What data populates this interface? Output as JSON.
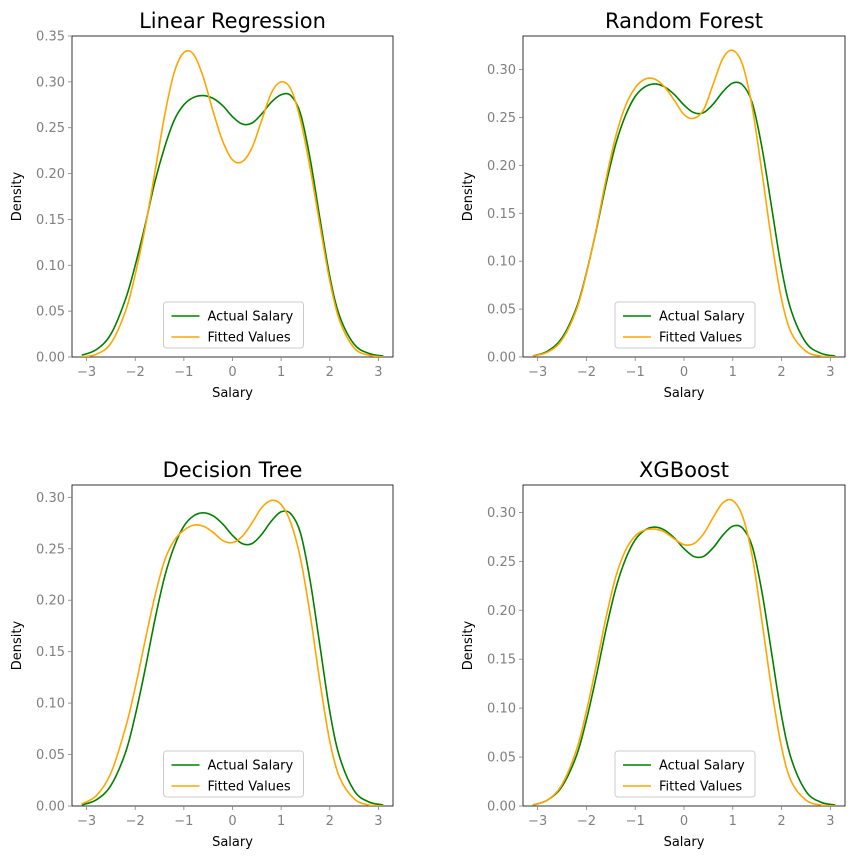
{
  "colors": {
    "actual": "#008000",
    "fitted": "#FFA500",
    "tick": "#808080"
  },
  "chart_data": [
    {
      "type": "line",
      "title": "Linear Regression",
      "xlabel": "Salary",
      "ylabel": "Density",
      "xlim": [
        -3.3,
        3.3
      ],
      "ylim": [
        0,
        0.35
      ],
      "xticks": [
        -3,
        -2,
        -1,
        0,
        1,
        2,
        3
      ],
      "yticks": [
        0.0,
        0.05,
        0.1,
        0.15,
        0.2,
        0.25,
        0.3,
        0.35
      ],
      "legend": "lower-center",
      "series": [
        {
          "name": "Actual Salary",
          "x": [
            -3.1,
            -2.8,
            -2.5,
            -2.2,
            -2.0,
            -1.8,
            -1.6,
            -1.4,
            -1.2,
            -1.0,
            -0.8,
            -0.6,
            -0.4,
            -0.2,
            0.0,
            0.2,
            0.4,
            0.6,
            0.8,
            1.0,
            1.2,
            1.4,
            1.6,
            1.8,
            2.0,
            2.2,
            2.5,
            2.8,
            3.1
          ],
          "y": [
            0.002,
            0.008,
            0.025,
            0.063,
            0.1,
            0.143,
            0.19,
            0.228,
            0.258,
            0.275,
            0.283,
            0.285,
            0.282,
            0.274,
            0.262,
            0.254,
            0.255,
            0.265,
            0.278,
            0.286,
            0.285,
            0.265,
            0.215,
            0.15,
            0.088,
            0.045,
            0.014,
            0.004,
            0.001
          ]
        },
        {
          "name": "Fitted Values",
          "x": [
            -3.1,
            -2.8,
            -2.5,
            -2.2,
            -2.0,
            -1.8,
            -1.6,
            -1.4,
            -1.2,
            -1.0,
            -0.8,
            -0.6,
            -0.4,
            -0.2,
            0.0,
            0.2,
            0.4,
            0.6,
            0.8,
            1.0,
            1.2,
            1.4,
            1.6,
            1.8,
            2.0,
            2.2,
            2.5,
            2.8,
            3.1
          ],
          "y": [
            0.0,
            0.003,
            0.015,
            0.05,
            0.09,
            0.14,
            0.2,
            0.262,
            0.31,
            0.332,
            0.33,
            0.305,
            0.268,
            0.235,
            0.215,
            0.213,
            0.228,
            0.258,
            0.288,
            0.3,
            0.292,
            0.258,
            0.205,
            0.143,
            0.083,
            0.04,
            0.01,
            0.002,
            0.0
          ]
        }
      ]
    },
    {
      "type": "line",
      "title": "Random Forest",
      "xlabel": "Salary",
      "ylabel": "Density",
      "xlim": [
        -3.3,
        3.3
      ],
      "ylim": [
        0,
        0.335
      ],
      "xticks": [
        -3,
        -2,
        -1,
        0,
        1,
        2,
        3
      ],
      "yticks": [
        0.0,
        0.05,
        0.1,
        0.15,
        0.2,
        0.25,
        0.3
      ],
      "legend": "lower-center",
      "series": [
        {
          "name": "Actual Salary",
          "x": [
            -3.1,
            -2.8,
            -2.5,
            -2.2,
            -2.0,
            -1.8,
            -1.6,
            -1.4,
            -1.2,
            -1.0,
            -0.8,
            -0.6,
            -0.4,
            -0.2,
            0.0,
            0.2,
            0.4,
            0.6,
            0.8,
            1.0,
            1.2,
            1.4,
            1.6,
            1.8,
            2.0,
            2.2,
            2.5,
            2.8,
            3.1
          ],
          "y": [
            0.001,
            0.006,
            0.02,
            0.052,
            0.088,
            0.132,
            0.18,
            0.222,
            0.252,
            0.272,
            0.282,
            0.285,
            0.282,
            0.274,
            0.263,
            0.255,
            0.255,
            0.264,
            0.277,
            0.286,
            0.284,
            0.265,
            0.218,
            0.155,
            0.092,
            0.048,
            0.015,
            0.004,
            0.001
          ]
        },
        {
          "name": "Fitted Values",
          "x": [
            -3.1,
            -2.8,
            -2.5,
            -2.2,
            -2.0,
            -1.8,
            -1.6,
            -1.4,
            -1.2,
            -1.0,
            -0.8,
            -0.6,
            -0.4,
            -0.2,
            0.0,
            0.2,
            0.4,
            0.6,
            0.8,
            1.0,
            1.2,
            1.4,
            1.6,
            1.8,
            2.0,
            2.2,
            2.5,
            2.8,
            3.1
          ],
          "y": [
            0.001,
            0.005,
            0.018,
            0.05,
            0.087,
            0.133,
            0.185,
            0.23,
            0.262,
            0.281,
            0.29,
            0.29,
            0.282,
            0.268,
            0.253,
            0.249,
            0.258,
            0.285,
            0.312,
            0.32,
            0.305,
            0.26,
            0.192,
            0.12,
            0.06,
            0.025,
            0.006,
            0.001,
            0.0
          ]
        }
      ]
    },
    {
      "type": "line",
      "title": "Decision Tree",
      "xlabel": "Salary",
      "ylabel": "Density",
      "xlim": [
        -3.3,
        3.3
      ],
      "ylim": [
        0,
        0.312
      ],
      "xticks": [
        -3,
        -2,
        -1,
        0,
        1,
        2,
        3
      ],
      "yticks": [
        0.0,
        0.05,
        0.1,
        0.15,
        0.2,
        0.25,
        0.3
      ],
      "legend": "lower-center",
      "series": [
        {
          "name": "Actual Salary",
          "x": [
            -3.1,
            -2.8,
            -2.5,
            -2.2,
            -2.0,
            -1.8,
            -1.6,
            -1.4,
            -1.2,
            -1.0,
            -0.8,
            -0.6,
            -0.4,
            -0.2,
            0.0,
            0.2,
            0.4,
            0.6,
            0.8,
            1.0,
            1.2,
            1.4,
            1.6,
            1.8,
            2.0,
            2.2,
            2.5,
            2.8,
            3.1
          ],
          "y": [
            0.001,
            0.006,
            0.02,
            0.052,
            0.088,
            0.132,
            0.18,
            0.222,
            0.252,
            0.272,
            0.282,
            0.285,
            0.282,
            0.274,
            0.263,
            0.255,
            0.255,
            0.264,
            0.277,
            0.286,
            0.284,
            0.265,
            0.218,
            0.155,
            0.092,
            0.048,
            0.015,
            0.004,
            0.001
          ]
        },
        {
          "name": "Fitted Values",
          "x": [
            -3.1,
            -2.8,
            -2.5,
            -2.2,
            -2.0,
            -1.8,
            -1.6,
            -1.4,
            -1.2,
            -1.0,
            -0.8,
            -0.6,
            -0.4,
            -0.2,
            0.0,
            0.2,
            0.4,
            0.6,
            0.8,
            1.0,
            1.2,
            1.4,
            1.6,
            1.8,
            2.0,
            2.2,
            2.5,
            2.8,
            3.1
          ],
          "y": [
            0.002,
            0.01,
            0.032,
            0.076,
            0.115,
            0.16,
            0.203,
            0.238,
            0.258,
            0.268,
            0.273,
            0.272,
            0.266,
            0.258,
            0.256,
            0.262,
            0.275,
            0.29,
            0.297,
            0.293,
            0.275,
            0.24,
            0.185,
            0.12,
            0.063,
            0.028,
            0.007,
            0.001,
            0.0
          ]
        }
      ]
    },
    {
      "type": "line",
      "title": "XGBoost",
      "xlabel": "Salary",
      "ylabel": "Density",
      "xlim": [
        -3.3,
        3.3
      ],
      "ylim": [
        0,
        0.328
      ],
      "xticks": [
        -3,
        -2,
        -1,
        0,
        1,
        2,
        3
      ],
      "yticks": [
        0.0,
        0.05,
        0.1,
        0.15,
        0.2,
        0.25,
        0.3
      ],
      "legend": "lower-center",
      "series": [
        {
          "name": "Actual Salary",
          "x": [
            -3.1,
            -2.8,
            -2.5,
            -2.2,
            -2.0,
            -1.8,
            -1.6,
            -1.4,
            -1.2,
            -1.0,
            -0.8,
            -0.6,
            -0.4,
            -0.2,
            0.0,
            0.2,
            0.4,
            0.6,
            0.8,
            1.0,
            1.2,
            1.4,
            1.6,
            1.8,
            2.0,
            2.2,
            2.5,
            2.8,
            3.1
          ],
          "y": [
            0.001,
            0.006,
            0.02,
            0.052,
            0.088,
            0.132,
            0.18,
            0.222,
            0.252,
            0.272,
            0.282,
            0.285,
            0.282,
            0.274,
            0.263,
            0.255,
            0.255,
            0.264,
            0.277,
            0.286,
            0.284,
            0.265,
            0.218,
            0.155,
            0.092,
            0.048,
            0.015,
            0.004,
            0.001
          ]
        },
        {
          "name": "Fitted Values",
          "x": [
            -3.1,
            -2.8,
            -2.5,
            -2.2,
            -2.0,
            -1.8,
            -1.6,
            -1.4,
            -1.2,
            -1.0,
            -0.8,
            -0.6,
            -0.4,
            -0.2,
            0.0,
            0.2,
            0.4,
            0.6,
            0.8,
            1.0,
            1.2,
            1.4,
            1.6,
            1.8,
            2.0,
            2.2,
            2.5,
            2.8,
            3.1
          ],
          "y": [
            0.001,
            0.006,
            0.022,
            0.058,
            0.097,
            0.143,
            0.192,
            0.234,
            0.261,
            0.276,
            0.282,
            0.283,
            0.28,
            0.273,
            0.267,
            0.268,
            0.278,
            0.295,
            0.31,
            0.312,
            0.296,
            0.255,
            0.188,
            0.118,
            0.06,
            0.025,
            0.006,
            0.001,
            0.0
          ]
        }
      ]
    }
  ]
}
